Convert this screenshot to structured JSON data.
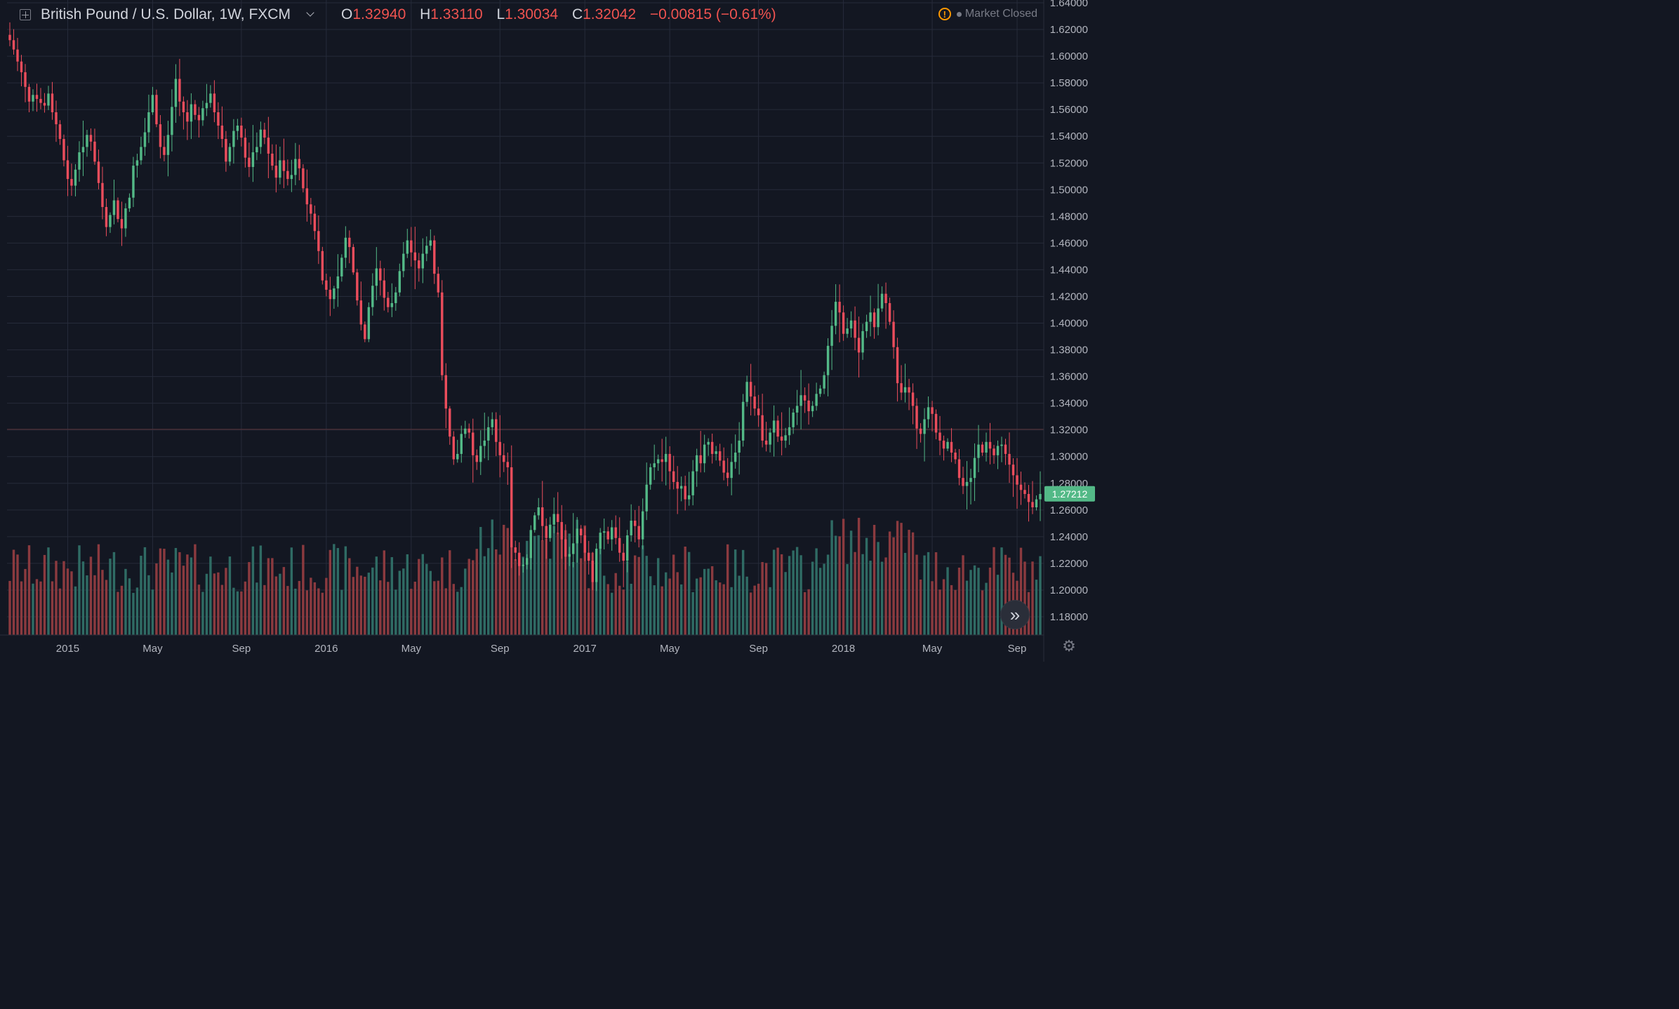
{
  "header": {
    "title": "British Pound / U.S. Dollar, 1W, FXCM",
    "ohlc": [
      {
        "label": "O",
        "value": "1.32940"
      },
      {
        "label": "H",
        "value": "1.33110"
      },
      {
        "label": "L",
        "value": "1.30034"
      },
      {
        "label": "C",
        "value": "1.32042"
      },
      {
        "label": "",
        "value": "−0.00815 (−0.61%)"
      }
    ],
    "status": "Market Closed",
    "warning_icon": "!"
  },
  "colors": {
    "background": "#131722",
    "up": "#53b987",
    "down": "#eb4d5c",
    "vol_up": "#2f6b64",
    "vol_down": "#8b3a3f",
    "grid": "#262b3a",
    "hline": "#5b3439",
    "price_tag": "#53b987"
  },
  "chart_data": {
    "type": "candlestick",
    "title": "British Pound / U.S. Dollar, 1W, FXCM",
    "symbol": "GBPUSD",
    "interval": "1W",
    "ylim": [
      1.165,
      1.6435
    ],
    "y_ticks": [
      "1.18000",
      "1.20000",
      "1.22000",
      "1.24000",
      "1.26000",
      "1.28000",
      "1.30000",
      "1.32000",
      "1.34000",
      "1.36000",
      "1.38000",
      "1.40000",
      "1.42000",
      "1.44000",
      "1.46000",
      "1.48000",
      "1.50000",
      "1.52000",
      "1.54000",
      "1.56000",
      "1.58000",
      "1.60000",
      "1.62000",
      "1.64000"
    ],
    "x_ticks": [
      {
        "label": "2015",
        "week": 15
      },
      {
        "label": "May",
        "week": 37
      },
      {
        "label": "Sep",
        "week": 60
      },
      {
        "label": "2016",
        "week": 82
      },
      {
        "label": "May",
        "week": 104
      },
      {
        "label": "Sep",
        "week": 127
      },
      {
        "label": "2017",
        "week": 149
      },
      {
        "label": "May",
        "week": 171
      },
      {
        "label": "Sep",
        "week": 194
      },
      {
        "label": "2018",
        "week": 216
      },
      {
        "label": "May",
        "week": 239
      },
      {
        "label": "Sep",
        "week": 261
      }
    ],
    "reference_line": 1.3204,
    "last_price": "1.27212",
    "weekly_closes": [
      1.612,
      1.605,
      1.596,
      1.588,
      1.577,
      1.566,
      1.571,
      1.568,
      1.565,
      1.563,
      1.572,
      1.558,
      1.549,
      1.538,
      1.522,
      1.508,
      1.503,
      1.515,
      1.528,
      1.532,
      1.541,
      1.536,
      1.521,
      1.505,
      1.487,
      1.472,
      1.481,
      1.492,
      1.478,
      1.471,
      1.486,
      1.494,
      1.518,
      1.522,
      1.532,
      1.543,
      1.558,
      1.571,
      1.549,
      1.532,
      1.526,
      1.541,
      1.562,
      1.583,
      1.566,
      1.558,
      1.551,
      1.564,
      1.556,
      1.552,
      1.561,
      1.565,
      1.572,
      1.558,
      1.548,
      1.538,
      1.521,
      1.532,
      1.544,
      1.548,
      1.539,
      1.524,
      1.517,
      1.528,
      1.532,
      1.545,
      1.539,
      1.527,
      1.518,
      1.509,
      1.522,
      1.514,
      1.508,
      1.511,
      1.523,
      1.516,
      1.501,
      1.489,
      1.482,
      1.469,
      1.454,
      1.432,
      1.425,
      1.418,
      1.426,
      1.435,
      1.449,
      1.464,
      1.457,
      1.438,
      1.417,
      1.399,
      1.388,
      1.412,
      1.428,
      1.441,
      1.432,
      1.419,
      1.412,
      1.415,
      1.423,
      1.439,
      1.452,
      1.462,
      1.453,
      1.447,
      1.441,
      1.452,
      1.458,
      1.462,
      1.437,
      1.423,
      1.361,
      1.336,
      1.315,
      1.298,
      1.302,
      1.317,
      1.321,
      1.318,
      1.301,
      1.296,
      1.308,
      1.312,
      1.322,
      1.328,
      1.311,
      1.301,
      1.296,
      1.292,
      1.232,
      1.228,
      1.218,
      1.219,
      1.224,
      1.245,
      1.256,
      1.262,
      1.248,
      1.239,
      1.249,
      1.257,
      1.251,
      1.238,
      1.225,
      1.227,
      1.235,
      1.246,
      1.241,
      1.228,
      1.222,
      1.206,
      1.231,
      1.243,
      1.244,
      1.238,
      1.247,
      1.239,
      1.228,
      1.222,
      1.241,
      1.252,
      1.248,
      1.238,
      1.259,
      1.279,
      1.292,
      1.295,
      1.298,
      1.296,
      1.302,
      1.289,
      1.281,
      1.276,
      1.278,
      1.268,
      1.271,
      1.289,
      1.301,
      1.295,
      1.309,
      1.311,
      1.302,
      1.304,
      1.297,
      1.288,
      1.284,
      1.296,
      1.303,
      1.312,
      1.341,
      1.356,
      1.345,
      1.336,
      1.331,
      1.312,
      1.309,
      1.318,
      1.327,
      1.315,
      1.312,
      1.316,
      1.322,
      1.333,
      1.338,
      1.346,
      1.342,
      1.334,
      1.338,
      1.347,
      1.351,
      1.361,
      1.383,
      1.398,
      1.416,
      1.408,
      1.392,
      1.396,
      1.402,
      1.389,
      1.378,
      1.394,
      1.401,
      1.408,
      1.397,
      1.411,
      1.422,
      1.415,
      1.401,
      1.382,
      1.355,
      1.348,
      1.352,
      1.348,
      1.338,
      1.321,
      1.317,
      1.328,
      1.337,
      1.332,
      1.318,
      1.312,
      1.306,
      1.311,
      1.303,
      1.298,
      1.284,
      1.278,
      1.281,
      1.284,
      1.299,
      1.309,
      1.303,
      1.311,
      1.306,
      1.301,
      1.308,
      1.309,
      1.302,
      1.294,
      1.286,
      1.279,
      1.275,
      1.272,
      1.266,
      1.262,
      1.268,
      1.272
    ],
    "volume_note": "Volume histogram at bottom, colored by candle direction (no volume scale shown)"
  }
}
